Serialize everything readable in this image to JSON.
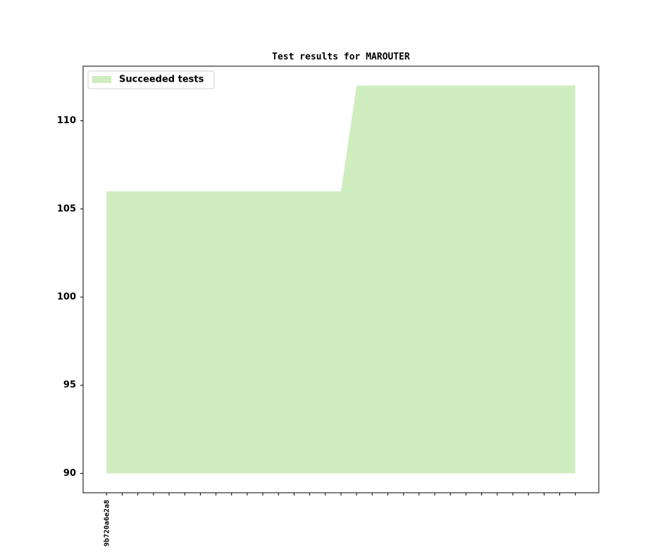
{
  "chart_data": {
    "type": "area",
    "title": "Test results for MAROUTER",
    "categories": [
      "9b720a6e2a8",
      null,
      null,
      null,
      null,
      null,
      null,
      null,
      null,
      null,
      null,
      null,
      null,
      null,
      null,
      null,
      null,
      null,
      null,
      null,
      null,
      null,
      null,
      null,
      null,
      null,
      null,
      null,
      null,
      null,
      null
    ],
    "series": [
      {
        "name": "Succeeded tests",
        "color": "#cfedbf",
        "values": [
          106,
          106,
          106,
          106,
          106,
          106,
          106,
          106,
          106,
          106,
          106,
          106,
          106,
          106,
          106,
          106,
          112,
          112,
          112,
          112,
          112,
          112,
          112,
          112,
          112,
          112,
          112,
          112,
          112,
          112,
          112
        ]
      }
    ],
    "area_base": 90,
    "ylim": [
      88.9,
      113.1
    ],
    "yticks": [
      90,
      95,
      100,
      105,
      110
    ],
    "legend": "upper left"
  }
}
